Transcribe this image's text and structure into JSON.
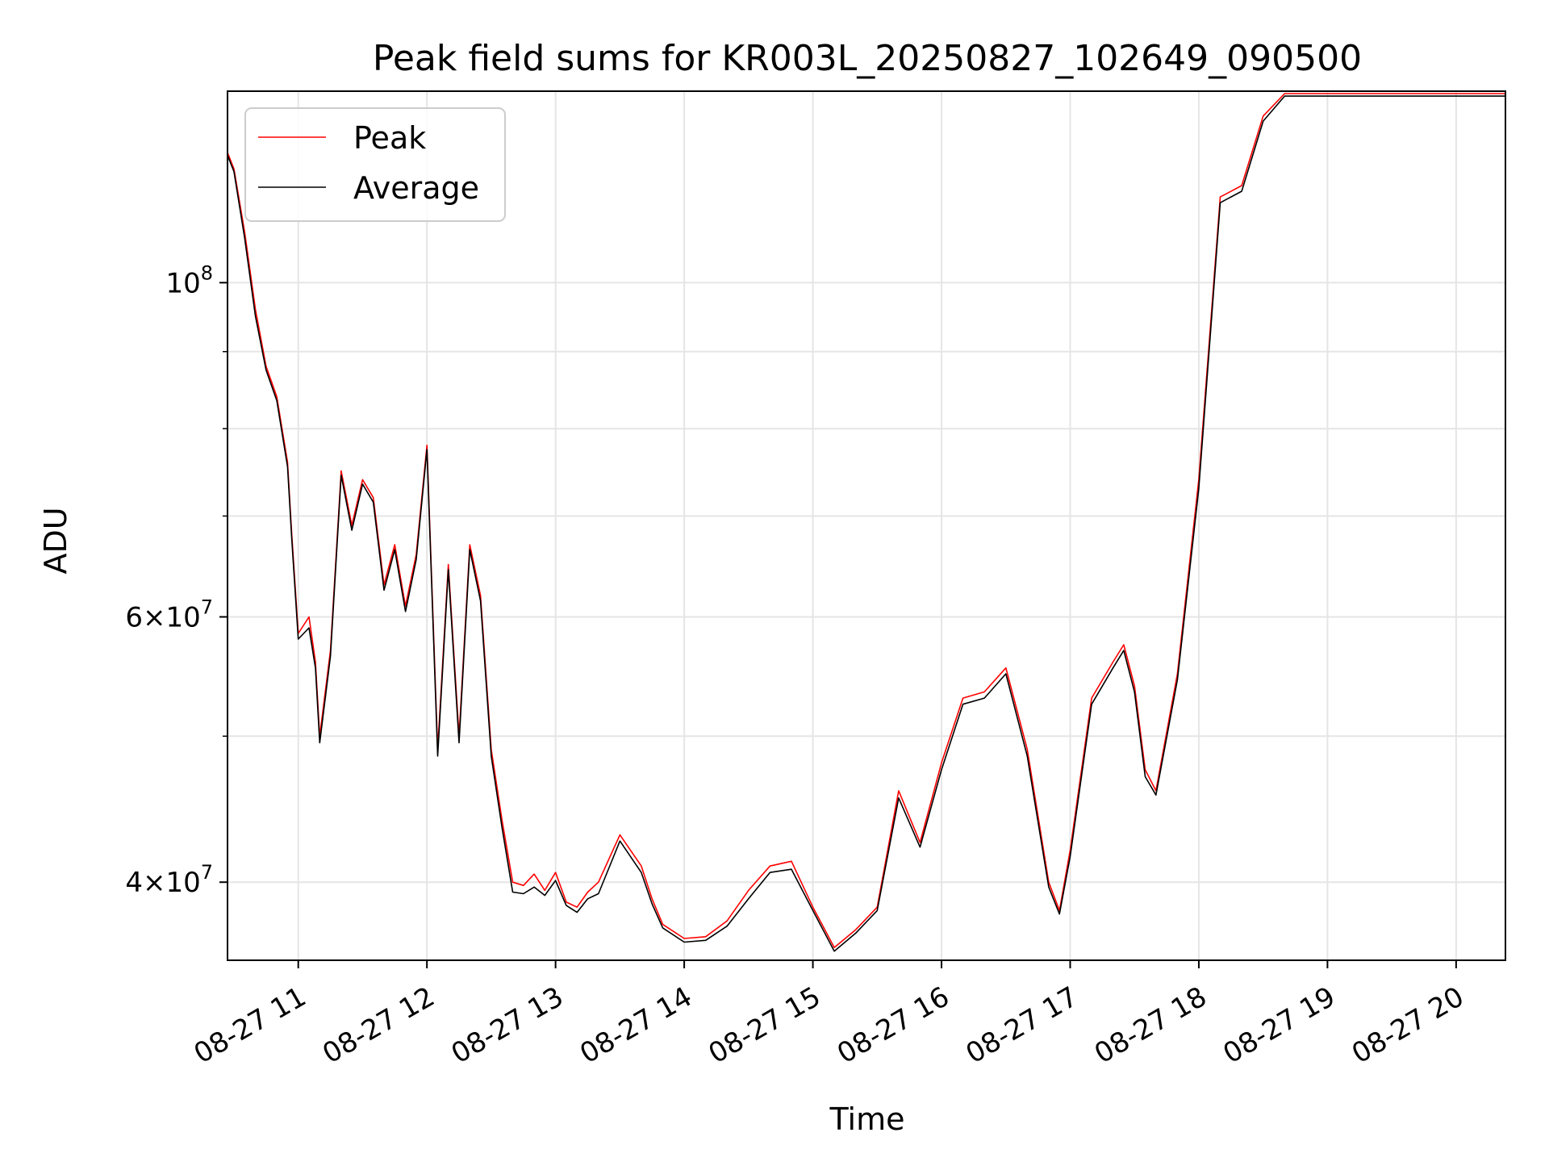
{
  "chart_data": {
    "type": "line",
    "title": "Peak field sums for KR003L_20250827_102649_090500",
    "xlabel": "Time",
    "ylabel": "ADU",
    "yscale": "log",
    "ylim": [
      35500000,
      134000000
    ],
    "xlim": [
      "08-27 10:27",
      "08-27 20:23"
    ],
    "x_ticks": [
      "08-27 11",
      "08-27 12",
      "08-27 13",
      "08-27 14",
      "08-27 15",
      "08-27 16",
      "08-27 17",
      "08-27 18",
      "08-27 19",
      "08-27 20"
    ],
    "y_ticks": [
      {
        "value": 40000000,
        "base": "4",
        "times": "×",
        "pow": "10",
        "exp": "7"
      },
      {
        "value": 60000000,
        "base": "6",
        "times": "×",
        "pow": "10",
        "exp": "7"
      },
      {
        "value": 100000000,
        "base": "",
        "times": "",
        "pow": "10",
        "exp": "8"
      }
    ],
    "y_minor_ticks": [
      50000000,
      70000000,
      80000000,
      90000000
    ],
    "grid": true,
    "legend": "top-left",
    "x": [
      "08-27 10:27",
      "08-27 10:30",
      "08-27 10:35",
      "08-27 10:40",
      "08-27 10:45",
      "08-27 10:50",
      "08-27 10:55",
      "08-27 10:57",
      "08-27 11:00",
      "08-27 11:05",
      "08-27 11:08",
      "08-27 11:10",
      "08-27 11:15",
      "08-27 11:20",
      "08-27 11:25",
      "08-27 11:30",
      "08-27 11:35",
      "08-27 11:40",
      "08-27 11:45",
      "08-27 11:50",
      "08-27 11:55",
      "08-27 12:00",
      "08-27 12:05",
      "08-27 12:10",
      "08-27 12:15",
      "08-27 12:20",
      "08-27 12:25",
      "08-27 12:30",
      "08-27 12:35",
      "08-27 12:40",
      "08-27 12:45",
      "08-27 12:50",
      "08-27 12:55",
      "08-27 13:00",
      "08-27 13:05",
      "08-27 13:10",
      "08-27 13:15",
      "08-27 13:20",
      "08-27 13:30",
      "08-27 13:40",
      "08-27 13:45",
      "08-27 13:50",
      "08-27 14:00",
      "08-27 14:10",
      "08-27 14:20",
      "08-27 14:30",
      "08-27 14:40",
      "08-27 14:50",
      "08-27 15:00",
      "08-27 15:10",
      "08-27 15:20",
      "08-27 15:30",
      "08-27 15:40",
      "08-27 15:50",
      "08-27 16:00",
      "08-27 16:10",
      "08-27 16:20",
      "08-27 16:30",
      "08-27 16:40",
      "08-27 16:50",
      "08-27 16:55",
      "08-27 17:00",
      "08-27 17:10",
      "08-27 17:20",
      "08-27 17:25",
      "08-27 17:30",
      "08-27 17:35",
      "08-27 17:40",
      "08-27 17:50",
      "08-27 18:00",
      "08-27 18:10",
      "08-27 18:20",
      "08-27 18:30",
      "08-27 18:40",
      "08-27 18:45",
      "08-27 18:50",
      "08-27 19:00",
      "08-27 19:10",
      "08-27 19:20",
      "08-27 19:30",
      "08-27 19:40",
      "08-27 19:45",
      "08-27 19:50",
      "08-27 20:00",
      "08-27 20:10",
      "08-27 20:15",
      "08-27 20:20",
      "08-27 20:23"
    ],
    "series": [
      {
        "name": "Peak",
        "color": "#ff0000",
        "values": [
          122000000,
          119000000,
          108000000,
          96000000,
          88000000,
          84000000,
          76000000,
          68000000,
          58500000,
          60000000,
          56000000,
          50000000,
          57000000,
          75000000,
          69000000,
          74000000,
          72000000,
          63000000,
          67000000,
          61000000,
          66000000,
          78000000,
          49000000,
          65000000,
          50000000,
          67000000,
          62000000,
          49000000,
          44000000,
          40000000,
          39800000,
          40500000,
          39500000,
          40600000,
          38800000,
          38500000,
          39400000,
          40000000,
          43000000,
          41000000,
          39000000,
          37500000,
          36700000,
          36800000,
          37700000,
          39500000,
          41000000,
          41300000,
          38500000,
          36200000,
          37200000,
          38500000,
          46000000,
          42500000,
          48000000,
          53000000,
          53500000,
          55500000,
          49000000,
          40000000,
          38300000,
          42000000,
          53000000,
          56000000,
          57500000,
          54000000,
          47500000,
          46000000,
          55000000,
          74000000,
          114000000,
          116000000,
          129000000,
          133500000,
          133500000,
          133500000,
          133500000,
          133500000,
          133500000,
          133500000,
          133500000,
          133500000,
          133500000,
          133500000,
          133500000,
          133500000,
          133500000,
          133500000
        ]
      },
      {
        "name": "Average",
        "color": "#000000",
        "values": [
          121500000,
          118500000,
          107000000,
          95000000,
          87500000,
          83500000,
          75500000,
          67500000,
          58000000,
          59000000,
          55500000,
          49500000,
          56500000,
          74500000,
          68500000,
          73500000,
          71500000,
          62500000,
          66500000,
          60500000,
          65500000,
          77500000,
          48500000,
          64500000,
          49500000,
          66500000,
          61500000,
          48500000,
          43500000,
          39400000,
          39300000,
          39700000,
          39200000,
          40100000,
          38600000,
          38200000,
          39000000,
          39300000,
          42600000,
          40600000,
          38700000,
          37300000,
          36500000,
          36600000,
          37400000,
          39000000,
          40600000,
          40800000,
          38300000,
          36000000,
          37000000,
          38300000,
          45500000,
          42200000,
          47500000,
          52500000,
          53000000,
          55000000,
          48500000,
          39700000,
          38100000,
          41600000,
          52500000,
          55500000,
          57000000,
          53500000,
          47000000,
          45700000,
          54500000,
          73000000,
          113000000,
          115000000,
          128000000,
          133000000,
          133000000,
          133000000,
          133000000,
          133000000,
          133000000,
          133000000,
          133000000,
          133000000,
          133000000,
          133000000,
          133000000,
          133000000,
          133000000,
          133000000
        ]
      }
    ]
  }
}
